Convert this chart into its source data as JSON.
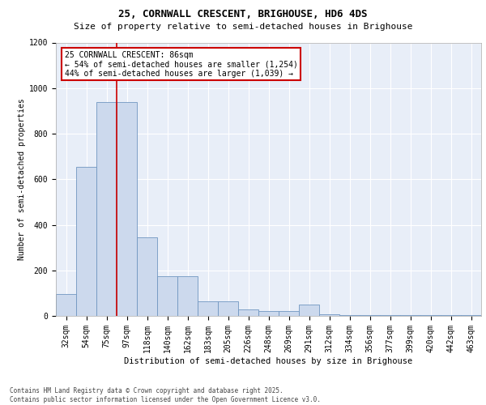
{
  "title_line1": "25, CORNWALL CRESCENT, BRIGHOUSE, HD6 4DS",
  "title_line2": "Size of property relative to semi-detached houses in Brighouse",
  "xlabel": "Distribution of semi-detached houses by size in Brighouse",
  "ylabel": "Number of semi-detached properties",
  "footer": "Contains HM Land Registry data © Crown copyright and database right 2025.\nContains public sector information licensed under the Open Government Licence v3.0.",
  "categories": [
    "32sqm",
    "54sqm",
    "75sqm",
    "97sqm",
    "118sqm",
    "140sqm",
    "162sqm",
    "183sqm",
    "205sqm",
    "226sqm",
    "248sqm",
    "269sqm",
    "291sqm",
    "312sqm",
    "334sqm",
    "356sqm",
    "377sqm",
    "399sqm",
    "420sqm",
    "442sqm",
    "463sqm"
  ],
  "values": [
    97,
    655,
    940,
    940,
    345,
    175,
    175,
    65,
    65,
    30,
    20,
    20,
    50,
    8,
    5,
    3,
    3,
    3,
    3,
    2,
    2
  ],
  "bar_color": "#ccd9ed",
  "bar_edge_color": "#7096c0",
  "ylim": [
    0,
    1200
  ],
  "yticks": [
    0,
    200,
    400,
    600,
    800,
    1000,
    1200
  ],
  "property_label": "25 CORNWALL CRESCENT: 86sqm",
  "pct_smaller": "54% of semi-detached houses are smaller (1,254)",
  "pct_larger": "44% of semi-detached houses are larger (1,039)",
  "vline_position": 2.5,
  "annotation_box_edgecolor": "#cc0000",
  "background_color": "#e8eef8",
  "grid_color": "#ffffff",
  "title_fontsize": 9,
  "subtitle_fontsize": 8,
  "ylabel_fontsize": 7,
  "xlabel_fontsize": 7.5,
  "tick_fontsize": 7,
  "annot_fontsize": 7,
  "footer_fontsize": 5.5
}
